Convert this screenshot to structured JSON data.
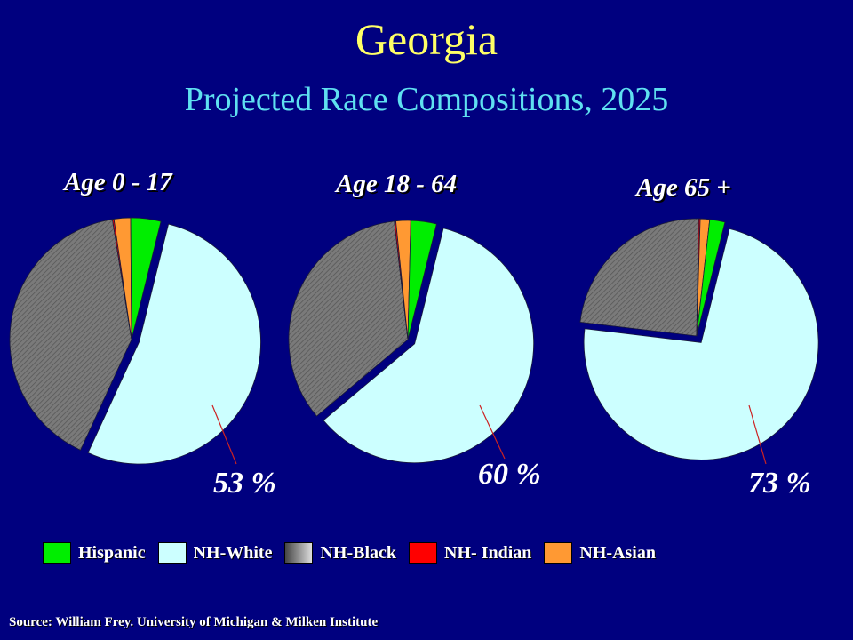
{
  "title": "Georgia",
  "subtitle": "Projected Race Compositions, 2025",
  "colors": {
    "background": "#00007f",
    "Hispanic": "#00ee00",
    "NH-White": "#ccffff",
    "NH-Black": "#888888",
    "NH- Indian": "#ff0000",
    "NH-Asian": "#ff9933"
  },
  "chart_data": [
    {
      "type": "pie",
      "title": "Age 0 - 17",
      "annotation": "53 %",
      "exploded": "NH-White",
      "slices": [
        {
          "label": "Hispanic",
          "value": 4
        },
        {
          "label": "NH-White",
          "value": 53
        },
        {
          "label": "NH-Black",
          "value": 40.6
        },
        {
          "label": "NH- Indian",
          "value": 0.2
        },
        {
          "label": "NH-Asian",
          "value": 2.2
        }
      ]
    },
    {
      "type": "pie",
      "title": "Age 18 - 64",
      "annotation": "60 %",
      "exploded": "NH-White",
      "slices": [
        {
          "label": "Hispanic",
          "value": 3.5
        },
        {
          "label": "NH-White",
          "value": 60
        },
        {
          "label": "NH-Black",
          "value": 34.3
        },
        {
          "label": "NH- Indian",
          "value": 0.2
        },
        {
          "label": "NH-Asian",
          "value": 2
        }
      ]
    },
    {
      "type": "pie",
      "title": "Age 65 +",
      "annotation": "73 %",
      "exploded": "NH-White",
      "slices": [
        {
          "label": "Hispanic",
          "value": 2.1
        },
        {
          "label": "NH-White",
          "value": 73
        },
        {
          "label": "NH-Black",
          "value": 23.4
        },
        {
          "label": "NH- Indian",
          "value": 0.2
        },
        {
          "label": "NH-Asian",
          "value": 1.3
        }
      ]
    }
  ],
  "legend": [
    "Hispanic",
    "NH-White",
    "NH-Black",
    "NH- Indian",
    "NH-Asian"
  ],
  "source": "Source: William Frey. University of Michigan & Milken Institute"
}
